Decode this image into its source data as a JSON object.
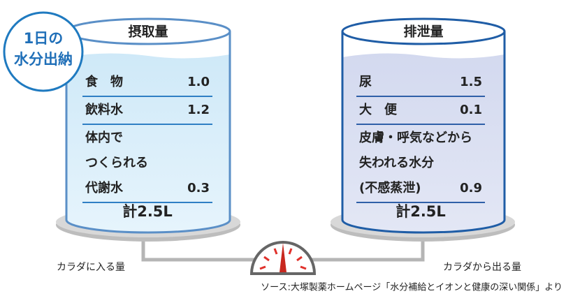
{
  "badge": {
    "lines": [
      "1日の",
      "水分出納"
    ]
  },
  "intake": {
    "title": "摂取量",
    "items": [
      {
        "label_lines": [
          "食　物"
        ],
        "value": "1.0"
      },
      {
        "label_lines": [
          "飲料水"
        ],
        "value": "1.2"
      },
      {
        "label_lines": [
          "体内で",
          "つくられる",
          "代謝水"
        ],
        "value": "0.3"
      }
    ],
    "total": "計2.5L",
    "caption": "カラダに入る量"
  },
  "output": {
    "title": "排泄量",
    "items": [
      {
        "label_lines": [
          "尿"
        ],
        "value": "1.5"
      },
      {
        "label_lines": [
          "大　便"
        ],
        "value": "0.1"
      },
      {
        "label_lines": [
          "皮膚・呼気などから",
          "失われる水分",
          "(不感蒸泄)"
        ],
        "value": "0.9"
      }
    ],
    "total": "計2.5L",
    "caption": "カラダから出る量"
  },
  "source": "ソース:大塚製薬ホームページ「水分補給とイオンと健康の深い関係」より"
}
